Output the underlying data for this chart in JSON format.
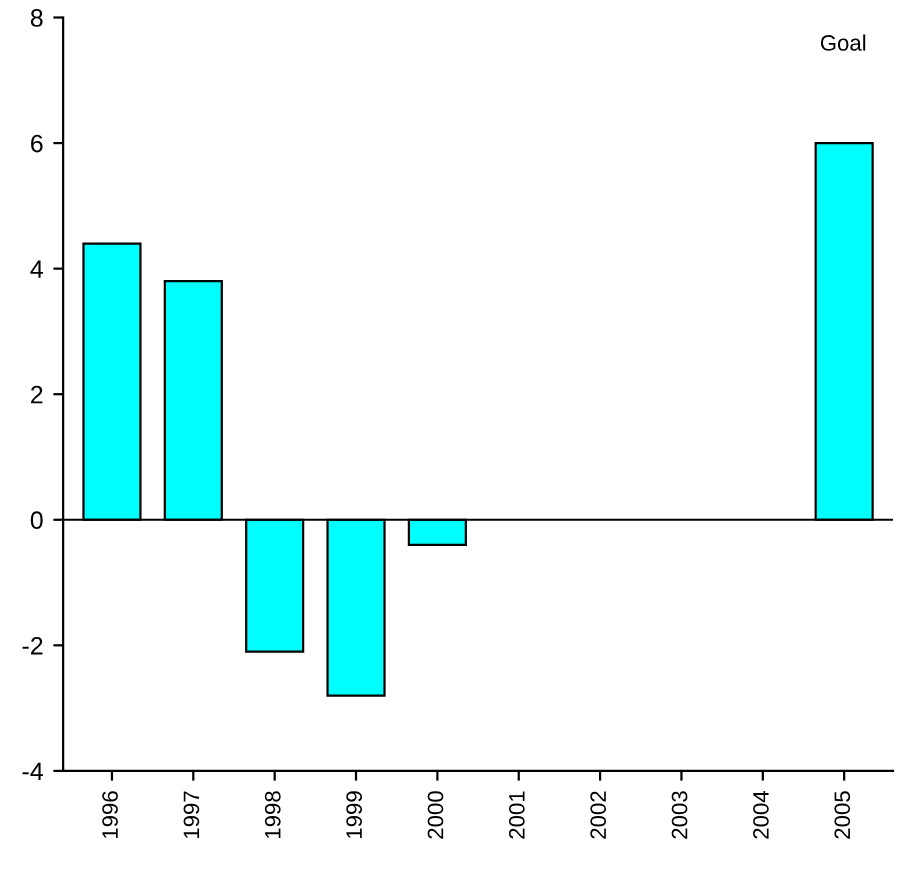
{
  "chart_data": {
    "type": "bar",
    "categories": [
      "1996",
      "1997",
      "1998",
      "1999",
      "2000",
      "2001",
      "2002",
      "2003",
      "2004",
      "2005"
    ],
    "values": [
      4.4,
      3.8,
      -2.1,
      -2.8,
      -0.4,
      null,
      null,
      null,
      null,
      6.0
    ],
    "color": "#00ffff",
    "ylim": [
      -4,
      8
    ],
    "yticks": [
      -4,
      -2,
      0,
      2,
      4,
      6,
      8
    ],
    "ref_lines": [
      {
        "axis": "y",
        "value": 0,
        "label": null,
        "color": "#000000"
      }
    ],
    "annotations": [
      "Goal"
    ],
    "grid": false,
    "legend": false
  }
}
